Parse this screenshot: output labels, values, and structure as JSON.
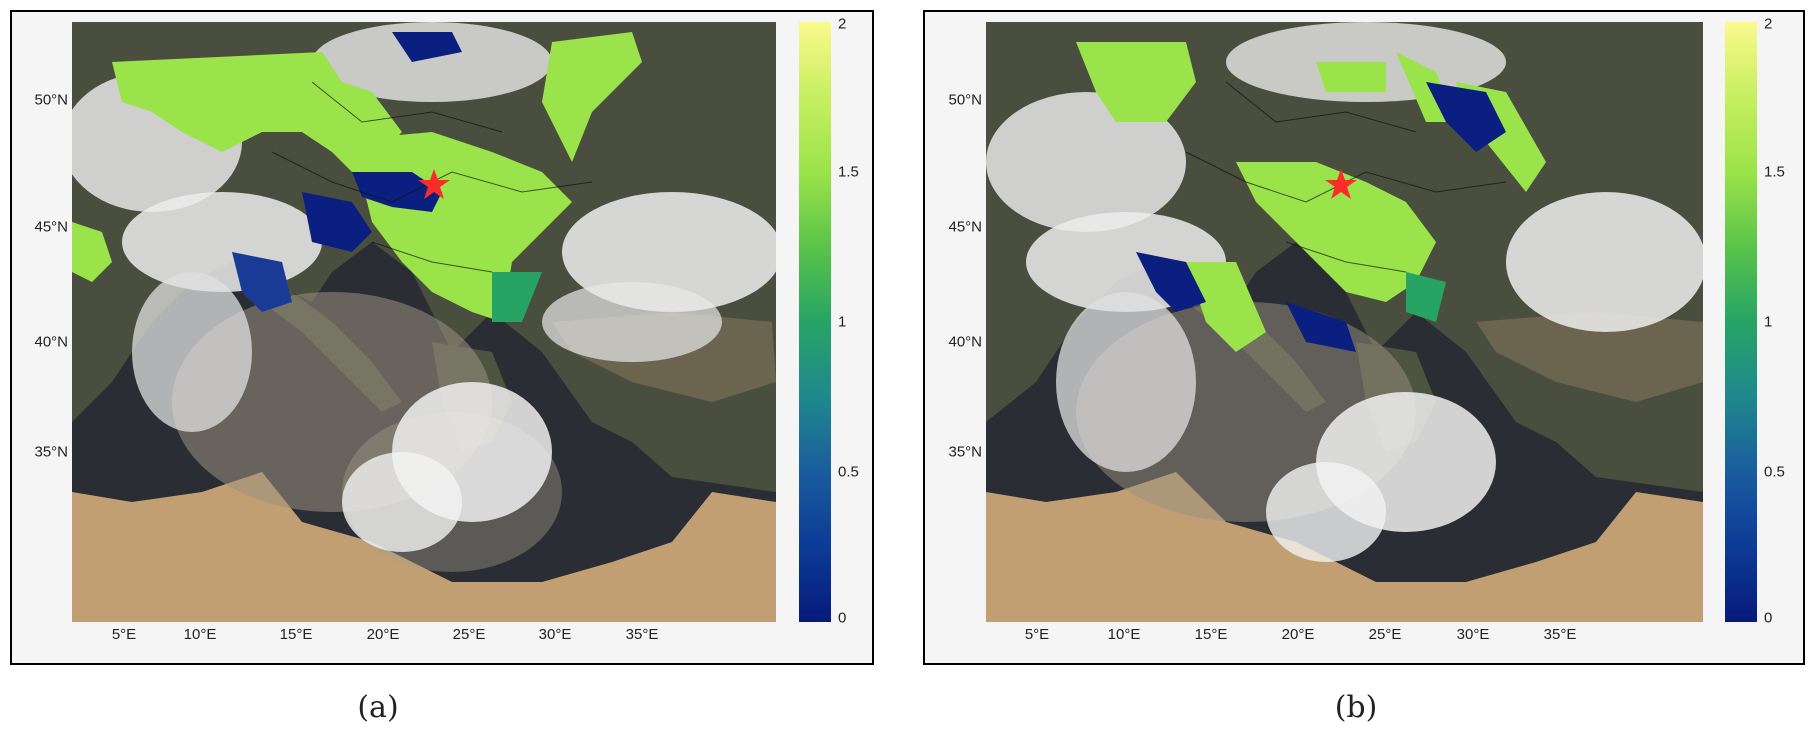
{
  "panels": [
    {
      "caption": "(a)",
      "lat_ticks": [
        "50°N",
        "45°N",
        "40°N",
        "35°N"
      ],
      "lon_ticks": [
        "5°E",
        "10°E",
        "15°E",
        "20°E",
        "25°E",
        "30°E",
        "35°E"
      ],
      "colorbar_ticks": [
        "2",
        "1.5",
        "1",
        "0.5",
        "0"
      ],
      "colorbar_range": [
        0,
        2
      ],
      "marker": "red-star"
    },
    {
      "caption": "(b)",
      "lat_ticks": [
        "50°N",
        "45°N",
        "40°N",
        "35°N"
      ],
      "lon_ticks": [
        "5°E",
        "10°E",
        "15°E",
        "20°E",
        "25°E",
        "30°E",
        "35°E"
      ],
      "colorbar_ticks": [
        "2",
        "1.5",
        "1",
        "0.5",
        "0"
      ],
      "colorbar_range": [
        0,
        2
      ],
      "marker": "red-star"
    }
  ],
  "colors": {
    "sea": "#2a2d33",
    "land_desert": "#b89a72",
    "land_green": "#3f4a34",
    "cloud": "#e8e8e8",
    "pixel_high": "#9be34a",
    "pixel_low": "#0b1f80",
    "pixel_mid": "#27a464",
    "star": "#ff2a2a",
    "colorbar_low": "#081a7a",
    "colorbar_high": "#fafa8c"
  }
}
